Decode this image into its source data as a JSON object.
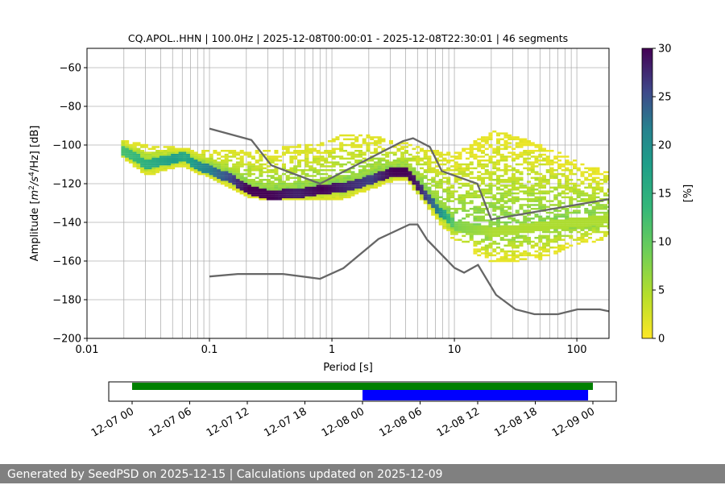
{
  "chart_data": [
    {
      "type": "heatmap",
      "title": "CQ.APOL..HHN | 100.0Hz | 2025-12-08T00:00:01 - 2025-12-08T22:30:01 | 46 segments",
      "xlabel": "Period [s]",
      "ylabel": "Amplitude [m²/s⁴/Hz] [dB]",
      "xscale": "log",
      "xlim": [
        0.01,
        183
      ],
      "ylim": [
        -200,
        -50
      ],
      "xticks": [
        "0.01",
        "0.1",
        "1",
        "10",
        "100"
      ],
      "yticks": [
        "-60",
        "-80",
        "-100",
        "-120",
        "-140",
        "-160",
        "-180",
        "-200"
      ],
      "grid": true,
      "colormap": "viridis_r",
      "colorbar": {
        "label": "[%]",
        "range": [
          0,
          30
        ],
        "ticks": [
          "0",
          "5",
          "10",
          "15",
          "20",
          "25",
          "30"
        ]
      },
      "density": {
        "periods": [
          0.019,
          0.03,
          0.05,
          0.06,
          0.08,
          0.1,
          0.15,
          0.2,
          0.3,
          0.5,
          0.8,
          1.2,
          2,
          3,
          4,
          5,
          7,
          10,
          20,
          50,
          100,
          183
        ],
        "mode_db": [
          -103,
          -110,
          -107,
          -106,
          -111,
          -113,
          -118,
          -123,
          -126,
          -125,
          -123,
          -122,
          -118,
          -114,
          -114,
          -122,
          -133,
          -142,
          -145,
          -142,
          -140,
          -138
        ],
        "mode_percent": [
          12,
          15,
          18,
          16,
          20,
          22,
          26,
          30,
          30,
          28,
          30,
          28,
          26,
          30,
          30,
          28,
          22,
          8,
          5,
          5,
          5,
          5
        ],
        "upper_db": [
          -98,
          -101,
          -102,
          -102,
          -103,
          -103,
          -103,
          -103,
          -103,
          -101,
          -100,
          -95,
          -96,
          -98,
          -100,
          -102,
          -104,
          -105,
          -93,
          -100,
          -110,
          -115
        ],
        "lower_db": [
          -106,
          -115,
          -111,
          -110,
          -114,
          -117,
          -122,
          -126,
          -128,
          -128,
          -128,
          -127,
          -122,
          -118,
          -118,
          -126,
          -138,
          -150,
          -160,
          -158,
          -150,
          -148
        ]
      },
      "noise_models": {
        "NHNM": [
          [
            0.1,
            -91.5
          ],
          [
            0.22,
            -97.4
          ],
          [
            0.32,
            -110.5
          ],
          [
            0.8,
            -120
          ],
          [
            3.8,
            -98
          ],
          [
            4.6,
            -96.5
          ],
          [
            6.3,
            -101
          ],
          [
            7.9,
            -113.5
          ],
          [
            15.4,
            -120
          ],
          [
            20,
            -138.5
          ],
          [
            183,
            -128
          ]
        ],
        "NLNM": [
          [
            0.1,
            -168
          ],
          [
            0.17,
            -166.7
          ],
          [
            0.4,
            -166.7
          ],
          [
            0.8,
            -169.2
          ],
          [
            1.24,
            -163.7
          ],
          [
            2.4,
            -148.6
          ],
          [
            4.3,
            -141.1
          ],
          [
            5,
            -141.1
          ],
          [
            6,
            -149
          ],
          [
            10,
            -163.5
          ],
          [
            12,
            -166
          ],
          [
            15.6,
            -162
          ],
          [
            21.9,
            -177.5
          ],
          [
            31.6,
            -185
          ],
          [
            45,
            -187.5
          ],
          [
            70,
            -187.5
          ],
          [
            101,
            -185
          ],
          [
            154,
            -185
          ],
          [
            183,
            -186
          ]
        ],
        "color": "#666666"
      }
    },
    {
      "type": "timeline",
      "xlim": [
        "2025-12-06T21:34",
        "2025-12-09T02:26"
      ],
      "xticks": [
        "12-07 00",
        "12-07 06",
        "12-07 12",
        "12-07 18",
        "12-08 00",
        "12-08 06",
        "12-08 12",
        "12-08 18",
        "12-09 00"
      ],
      "bars": [
        {
          "start": "2025-12-07T00:00",
          "end": "2025-12-09T00:00",
          "color": "#008000"
        },
        {
          "start": "2025-12-08T00:00",
          "end": "2025-12-08T23:30",
          "color": "#0000ff"
        }
      ]
    }
  ],
  "footer": "Generated by SeedPSD on 2025-12-15 | Calculations updated on 2025-12-09"
}
